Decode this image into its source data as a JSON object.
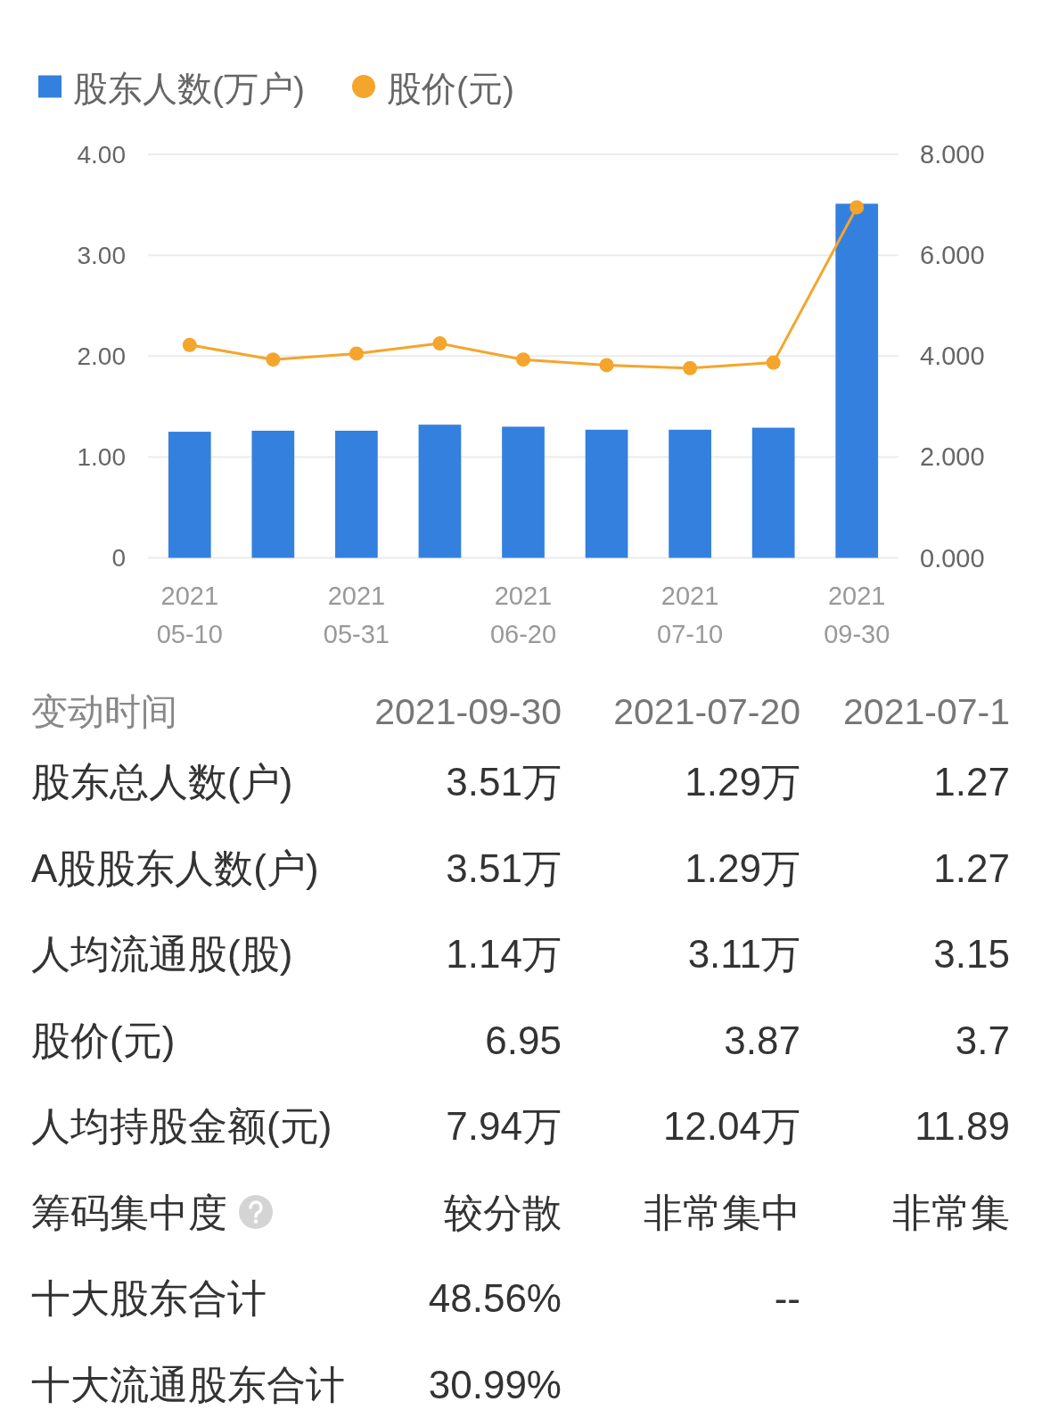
{
  "chart_data": [
    {
      "type": "bar",
      "categories": [
        "2021\n05-10",
        null,
        "2021\n05-31",
        null,
        "2021\n06-20",
        null,
        "2021\n07-10",
        null,
        "2021\n09-30"
      ],
      "series": [
        {
          "name": "股东人数(万户)",
          "type": "bar",
          "color": "#3480de",
          "values": [
            1.25,
            1.26,
            1.26,
            1.32,
            1.3,
            1.27,
            1.27,
            1.29,
            3.51
          ]
        },
        {
          "name": "股价(元)",
          "type": "line",
          "axis": "y2",
          "color": "#f5a52b",
          "values": [
            4.22,
            3.93,
            4.05,
            4.25,
            3.93,
            3.82,
            3.76,
            3.87,
            6.95
          ]
        }
      ],
      "ylim": [
        0,
        4
      ],
      "yticks": [
        0,
        {
          "value": 1,
          "label": "1.00"
        },
        {
          "value": 2,
          "label": "2.00"
        },
        {
          "value": 3,
          "label": "3.00"
        },
        {
          "value": 4,
          "label": "4.00"
        }
      ],
      "y2lim": [
        0,
        8
      ],
      "y2ticks": [
        {
          "value": 0,
          "label": "0.000"
        },
        {
          "value": 2,
          "label": "2.000"
        },
        {
          "value": 4,
          "label": "4.000"
        },
        {
          "value": 6,
          "label": "6.000"
        },
        {
          "value": 8,
          "label": "8.000"
        }
      ],
      "grid": "y",
      "legend": "top left",
      "marker": "circle",
      "line_style": "solid"
    },
    {
      "type": "other",
      "y_categories": [
        "变动时间",
        "股东总人数(户)",
        "A股股东人数(户)",
        "人均流通股(股)",
        "股价(元)",
        "人均持股金额(元)",
        "筹码集中度",
        "十大股东合计",
        "十大流通股东合计"
      ],
      "cell_labels": [
        [
          "2021-09-30",
          "2021-07-20",
          "2021-07-1"
        ],
        [
          "3.51万",
          "1.29万",
          "1.27"
        ],
        [
          "3.51万",
          "1.29万",
          "1.27"
        ],
        [
          "1.14万",
          "3.11万",
          "3.15"
        ],
        [
          "6.95",
          "3.87",
          "3.7"
        ],
        [
          "7.94万",
          "12.04万",
          "11.89"
        ],
        [
          "较分散",
          "非常集中",
          "非常集"
        ],
        [
          "48.56%",
          "--",
          null
        ],
        [
          "30.99%",
          null,
          null
        ]
      ]
    }
  ]
}
